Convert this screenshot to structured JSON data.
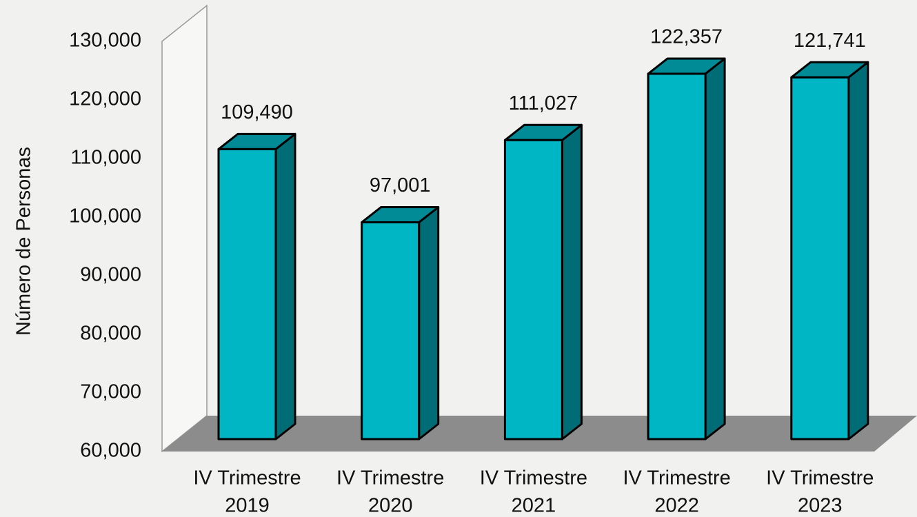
{
  "chart_data": {
    "type": "bar3d",
    "y_label": "Número de Personas",
    "categories": [
      [
        "IV Trimestre",
        "2019"
      ],
      [
        "IV Trimestre",
        "2020"
      ],
      [
        "IV Trimestre",
        "2021"
      ],
      [
        "IV Trimestre",
        "2022"
      ],
      [
        "IV Trimestre",
        "2023"
      ]
    ],
    "values": [
      109490,
      97001,
      111027,
      122357,
      121741
    ],
    "value_labels": [
      "109,490",
      "97,001",
      "111,027",
      "122,357",
      "121,741"
    ],
    "color": "#00b5c4",
    "ylim": [
      60000,
      130000
    ],
    "yticks": [
      {
        "value": 60000,
        "label": "60,000"
      },
      {
        "value": 70000,
        "label": "70,000"
      },
      {
        "value": 80000,
        "label": "80,000"
      },
      {
        "value": 90000,
        "label": "90,000"
      },
      {
        "value": 100000,
        "label": "100,000"
      },
      {
        "value": 110000,
        "label": "110,000"
      },
      {
        "value": 120000,
        "label": "120,000"
      },
      {
        "value": 130000,
        "label": "130,000"
      }
    ]
  }
}
